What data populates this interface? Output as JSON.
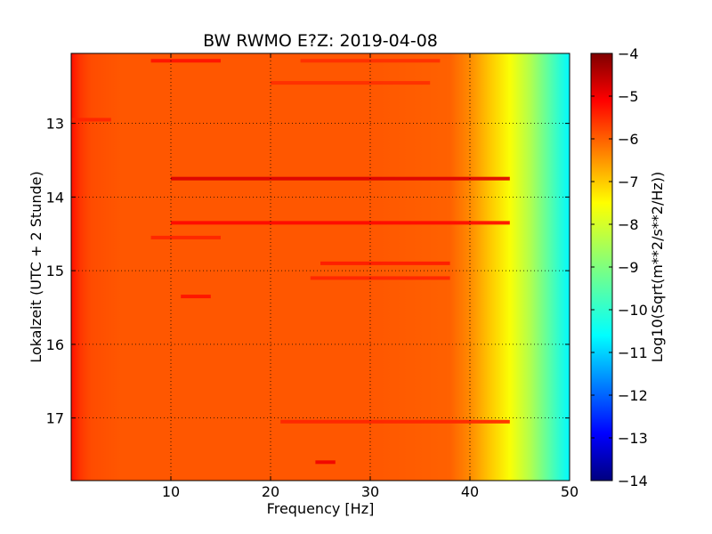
{
  "chart_data": {
    "type": "heatmap",
    "title": "BW RWMO E?Z: 2019-04-08",
    "xlabel": "Frequency [Hz]",
    "ylabel": "Lokalzeit (UTC + 2 Stunde)",
    "xlim": [
      0,
      50
    ],
    "ylim": [
      12.05,
      17.85
    ],
    "y_inverted": true,
    "grid": true,
    "grid_style": "dotted",
    "colormap": "jet",
    "x_ticks": [
      10,
      20,
      30,
      40,
      50
    ],
    "x_tick_labels": [
      "10",
      "20",
      "30",
      "40",
      "50"
    ],
    "y_ticks": [
      13,
      14,
      15,
      16,
      17
    ],
    "y_tick_labels": [
      "13",
      "14",
      "15",
      "16",
      "17"
    ],
    "colorbar": {
      "label": "Log10(Sqrt(m**2/s**2/Hz))",
      "range": [
        -14,
        -4
      ],
      "ticks": [
        -4,
        -5,
        -6,
        -7,
        -8,
        -9,
        -10,
        -11,
        -12,
        -13,
        -14
      ],
      "tick_labels": [
        "−4",
        "−5",
        "−6",
        "−7",
        "−8",
        "−9",
        "−10",
        "−11",
        "−12",
        "−13",
        "−14"
      ]
    },
    "spectral_profile": {
      "frequency_hz": [
        0,
        0.5,
        1,
        2,
        5,
        10,
        20,
        30,
        38,
        40,
        42,
        44,
        46,
        48,
        50
      ],
      "log10_amplitude": [
        -5.4,
        -5.6,
        -5.8,
        -6.0,
        -6.1,
        -6.1,
        -6.1,
        -6.1,
        -6.2,
        -6.6,
        -7.2,
        -7.8,
        -8.5,
        -9.4,
        -10.3
      ]
    },
    "bands": [
      {
        "time": 12.15,
        "f_start": 8,
        "f_end": 15,
        "log10_amplitude": -5.4
      },
      {
        "time": 12.15,
        "f_start": 23,
        "f_end": 37,
        "log10_amplitude": -5.7
      },
      {
        "time": 12.45,
        "f_start": 20,
        "f_end": 36,
        "log10_amplitude": -5.7
      },
      {
        "time": 12.95,
        "f_start": 0,
        "f_end": 4,
        "log10_amplitude": -5.6
      },
      {
        "time": 13.75,
        "f_start": 10,
        "f_end": 44,
        "log10_amplitude": -4.9
      },
      {
        "time": 14.35,
        "f_start": 10,
        "f_end": 44,
        "log10_amplitude": -5.3
      },
      {
        "time": 14.55,
        "f_start": 8,
        "f_end": 15,
        "log10_amplitude": -5.6
      },
      {
        "time": 14.9,
        "f_start": 25,
        "f_end": 38,
        "log10_amplitude": -5.5
      },
      {
        "time": 15.1,
        "f_start": 24,
        "f_end": 38,
        "log10_amplitude": -5.6
      },
      {
        "time": 15.35,
        "f_start": 11,
        "f_end": 14,
        "log10_amplitude": -5.4
      },
      {
        "time": 17.05,
        "f_start": 21,
        "f_end": 44,
        "log10_amplitude": -5.6
      },
      {
        "time": 17.6,
        "f_start": 24.5,
        "f_end": 26.5,
        "log10_amplitude": -5.1
      }
    ]
  }
}
